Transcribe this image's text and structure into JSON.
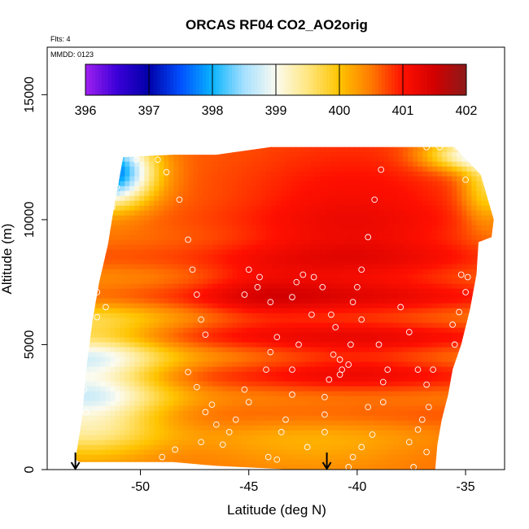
{
  "chart_data": {
    "type": "heatmap",
    "title": "ORCAS RF04 CO2_AO2orig",
    "annotations": {
      "flights": "Flts: 4",
      "mmdd": "MMDD: 0123"
    },
    "xlabel": "Latitude (deg N)",
    "ylabel": "Altitude (m)",
    "xlim": [
      -54.3,
      -33.2
    ],
    "ylim": [
      0,
      16900
    ],
    "x_ticks": [
      -50,
      -45,
      -40,
      -35
    ],
    "x_tick_labels": [
      "-50",
      "-45",
      "-40",
      "-35"
    ],
    "y_ticks": [
      0,
      5000,
      10000,
      15000
    ],
    "y_tick_labels": [
      "0",
      "5000",
      "10000",
      "15000"
    ],
    "colorbar": {
      "min": 396,
      "max": 402,
      "ticks": [
        396,
        397,
        398,
        399,
        400,
        401,
        402
      ],
      "tick_labels": [
        "396",
        "397",
        "398",
        "399",
        "400",
        "401",
        "402"
      ],
      "stops": [
        {
          "v": 396.0,
          "c": "#a020f0"
        },
        {
          "v": 396.5,
          "c": "#3a00d8"
        },
        {
          "v": 397.0,
          "c": "#0000a8"
        },
        {
          "v": 397.5,
          "c": "#0050ff"
        },
        {
          "v": 398.0,
          "c": "#0ab4ff"
        },
        {
          "v": 398.5,
          "c": "#a6e0ff"
        },
        {
          "v": 399.0,
          "c": "#fbfbf0"
        },
        {
          "v": 399.5,
          "c": "#ffe680"
        },
        {
          "v": 400.0,
          "c": "#ffc400"
        },
        {
          "v": 400.5,
          "c": "#ff7a00"
        },
        {
          "v": 401.0,
          "c": "#ff1000"
        },
        {
          "v": 401.5,
          "c": "#d20000"
        },
        {
          "v": 402.0,
          "c": "#8b1a1a"
        }
      ]
    },
    "domain_outline": [
      [
        -53.0,
        400
      ],
      [
        -52.7,
        2000
      ],
      [
        -52.5,
        4000
      ],
      [
        -52.2,
        6000
      ],
      [
        -51.9,
        7500
      ],
      [
        -51.5,
        9000
      ],
      [
        -51.2,
        10600
      ],
      [
        -51.0,
        11500
      ],
      [
        -50.8,
        12500
      ],
      [
        -48.5,
        12600
      ],
      [
        -46.5,
        12600
      ],
      [
        -44.0,
        12900
      ],
      [
        -39.0,
        12900
      ],
      [
        -36.5,
        12900
      ],
      [
        -35.5,
        12900
      ],
      [
        -34.3,
        11800
      ],
      [
        -33.7,
        10000
      ],
      [
        -33.8,
        9300
      ],
      [
        -34.4,
        9100
      ],
      [
        -34.5,
        7800
      ],
      [
        -34.8,
        6400
      ],
      [
        -35.2,
        5000
      ],
      [
        -35.6,
        4000
      ],
      [
        -35.8,
        3000
      ],
      [
        -36.1,
        2000
      ],
      [
        -36.3,
        1000
      ],
      [
        -36.4,
        0
      ],
      [
        -43.0,
        0
      ],
      [
        -46.5,
        150
      ],
      [
        -48.5,
        300
      ],
      [
        -52.8,
        300
      ]
    ],
    "field": {
      "base": 400.6,
      "features": [
        {
          "lat": -40.2,
          "alt": 8800,
          "slat": 4.0,
          "salt": 3000,
          "amp": 0.65
        },
        {
          "lat": -44.5,
          "alt": 7000,
          "slat": 2.0,
          "salt": 900,
          "amp": 0.4
        },
        {
          "lat": -40.0,
          "alt": 4200,
          "slat": 3.0,
          "salt": 700,
          "amp": 0.3
        },
        {
          "lat": -51.5,
          "alt": 11900,
          "slat": 1.4,
          "salt": 900,
          "amp": -3.1
        },
        {
          "lat": -52.5,
          "alt": 4300,
          "slat": 2.5,
          "salt": 1400,
          "amp": -1.5
        },
        {
          "lat": -52.5,
          "alt": 2000,
          "slat": 2.5,
          "salt": 1200,
          "amp": -1.1
        },
        {
          "lat": -35.0,
          "alt": 12600,
          "slat": 1.4,
          "salt": 450,
          "amp": -1.5
        },
        {
          "lat": -34.0,
          "alt": 11500,
          "slat": 0.8,
          "salt": 1200,
          "amp": -1.0
        },
        {
          "lat": -42.0,
          "alt": 1000,
          "slat": 4.0,
          "salt": 900,
          "amp": -0.45
        }
      ]
    },
    "descent_markers_lat": [
      -53.0,
      -41.4
    ],
    "sample_points": [
      [
        -51.0,
        12400
      ],
      [
        -50.2,
        12400
      ],
      [
        -49.2,
        12400
      ],
      [
        -51.3,
        11900
      ],
      [
        -48.8,
        11900
      ],
      [
        -51.1,
        11300
      ],
      [
        -48.2,
        10800
      ],
      [
        -51.3,
        10500
      ],
      [
        -52.3,
        10000
      ],
      [
        -52.4,
        9300
      ],
      [
        -47.8,
        9200
      ],
      [
        -52.2,
        8000
      ],
      [
        -47.6,
        8000
      ],
      [
        -52.0,
        7100
      ],
      [
        -51.6,
        6500
      ],
      [
        -52.0,
        6100
      ],
      [
        -47.4,
        7000
      ],
      [
        -47.2,
        6000
      ],
      [
        -47.0,
        5400
      ],
      [
        -45.0,
        8000
      ],
      [
        -44.5,
        7700
      ],
      [
        -45.2,
        7000
      ],
      [
        -44.6,
        7300
      ],
      [
        -44.0,
        6700
      ],
      [
        -43.7,
        5300
      ],
      [
        -44.2,
        4000
      ],
      [
        -43.0,
        4000
      ],
      [
        -44.0,
        4700
      ],
      [
        -42.8,
        7500
      ],
      [
        -42.5,
        7800
      ],
      [
        -42.0,
        7700
      ],
      [
        -43.0,
        6900
      ],
      [
        -42.1,
        6200
      ],
      [
        -42.7,
        5000
      ],
      [
        -41.6,
        7300
      ],
      [
        -41.2,
        6200
      ],
      [
        -41.0,
        5700
      ],
      [
        -41.1,
        4600
      ],
      [
        -40.8,
        4400
      ],
      [
        -40.7,
        4000
      ],
      [
        -40.4,
        4200
      ],
      [
        -40.8,
        3800
      ],
      [
        -40.0,
        7300
      ],
      [
        -40.2,
        6700
      ],
      [
        -40.3,
        5000
      ],
      [
        -39.8,
        8000
      ],
      [
        -39.5,
        9300
      ],
      [
        -39.2,
        10800
      ],
      [
        -38.9,
        12000
      ],
      [
        -39.8,
        6000
      ],
      [
        -39.0,
        5000
      ],
      [
        -38.6,
        4000
      ],
      [
        -38.0,
        6500
      ],
      [
        -37.6,
        5500
      ],
      [
        -37.2,
        4000
      ],
      [
        -36.8,
        12900
      ],
      [
        -36.2,
        12900
      ],
      [
        -35.4,
        12900
      ],
      [
        -35.0,
        11600
      ],
      [
        -35.2,
        7800
      ],
      [
        -34.9,
        7700
      ],
      [
        -35.0,
        7100
      ],
      [
        -35.3,
        6300
      ],
      [
        -35.6,
        5800
      ],
      [
        -35.5,
        5000
      ],
      [
        -36.5,
        4000
      ],
      [
        -36.8,
        3400
      ],
      [
        -36.7,
        2500
      ],
      [
        -37.0,
        2000
      ],
      [
        -37.2,
        1600
      ],
      [
        -37.6,
        1100
      ],
      [
        -36.8,
        700
      ],
      [
        -37.4,
        100
      ],
      [
        -38.8,
        3500
      ],
      [
        -38.8,
        2700
      ],
      [
        -39.5,
        2500
      ],
      [
        -39.3,
        1400
      ],
      [
        -39.8,
        900
      ],
      [
        -40.2,
        500
      ],
      [
        -40.4,
        100
      ],
      [
        -41.3,
        3600
      ],
      [
        -41.5,
        2900
      ],
      [
        -41.5,
        2200
      ],
      [
        -41.5,
        1500
      ],
      [
        -42.3,
        900
      ],
      [
        -43.0,
        3000
      ],
      [
        -43.3,
        2000
      ],
      [
        -43.5,
        1500
      ],
      [
        -43.7,
        400
      ],
      [
        -44.1,
        500
      ],
      [
        -45.2,
        3200
      ],
      [
        -45.0,
        2700
      ],
      [
        -45.6,
        2000
      ],
      [
        -45.9,
        1500
      ],
      [
        -46.2,
        1000
      ],
      [
        -46.5,
        1800
      ],
      [
        -47.0,
        2300
      ],
      [
        -46.7,
        2600
      ],
      [
        -47.2,
        1100
      ],
      [
        -47.4,
        3300
      ],
      [
        -47.8,
        3900
      ],
      [
        -48.4,
        800
      ],
      [
        -49.0,
        500
      ],
      [
        -52.6,
        3200
      ],
      [
        -52.8,
        2600
      ],
      [
        -52.5,
        2300
      ]
    ]
  },
  "colors": {
    "axis": "#000000",
    "point": "#ffffff"
  }
}
